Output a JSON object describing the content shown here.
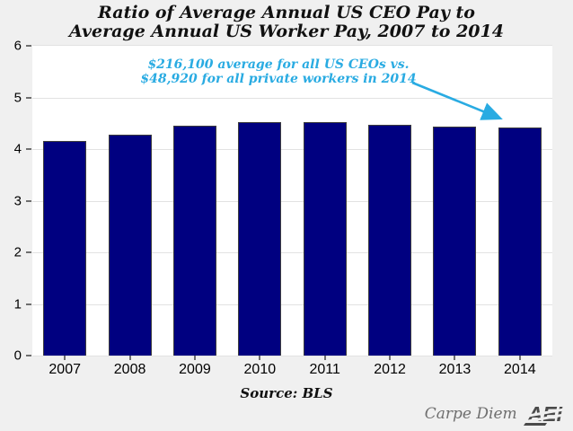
{
  "page": {
    "background": "#f0f0f0"
  },
  "title": "Ratio of Average Annual US CEO Pay to\nAverage Annual US Worker Pay, 2007 to 2014",
  "annotation": {
    "text": "$216,100 average for all US CEOs vs.\n$48,920 for all private workers in 2014",
    "color": "#29abe2"
  },
  "source_note": "Source: BLS",
  "footer": {
    "blog_name": "Carpe Diem",
    "logo_text": "AEI"
  },
  "colors": {
    "bar_fill": "#000080",
    "bar_border": "#3d3d3d",
    "gridline": "#e2e2e2",
    "plot_background": "#ffffff",
    "page_background": "#f0f0f0",
    "annotation_blue": "#29abe2"
  },
  "chart_data": {
    "type": "bar",
    "title": "Ratio of Average Annual US CEO Pay to Average Annual US Worker Pay, 2007 to 2014",
    "categories": [
      "2007",
      "2008",
      "2009",
      "2010",
      "2011",
      "2012",
      "2013",
      "2014"
    ],
    "values": [
      4.15,
      4.28,
      4.45,
      4.52,
      4.53,
      4.47,
      4.43,
      4.42
    ],
    "xlabel": "",
    "ylabel": "",
    "ylim": [
      0,
      6
    ],
    "yticks": [
      0,
      1,
      2,
      3,
      4,
      5,
      6
    ],
    "grid": true,
    "legend": false,
    "source": "Source: BLS",
    "annotation": "$216,100 average for all US CEOs vs. $48,920 for all private workers in 2014"
  }
}
